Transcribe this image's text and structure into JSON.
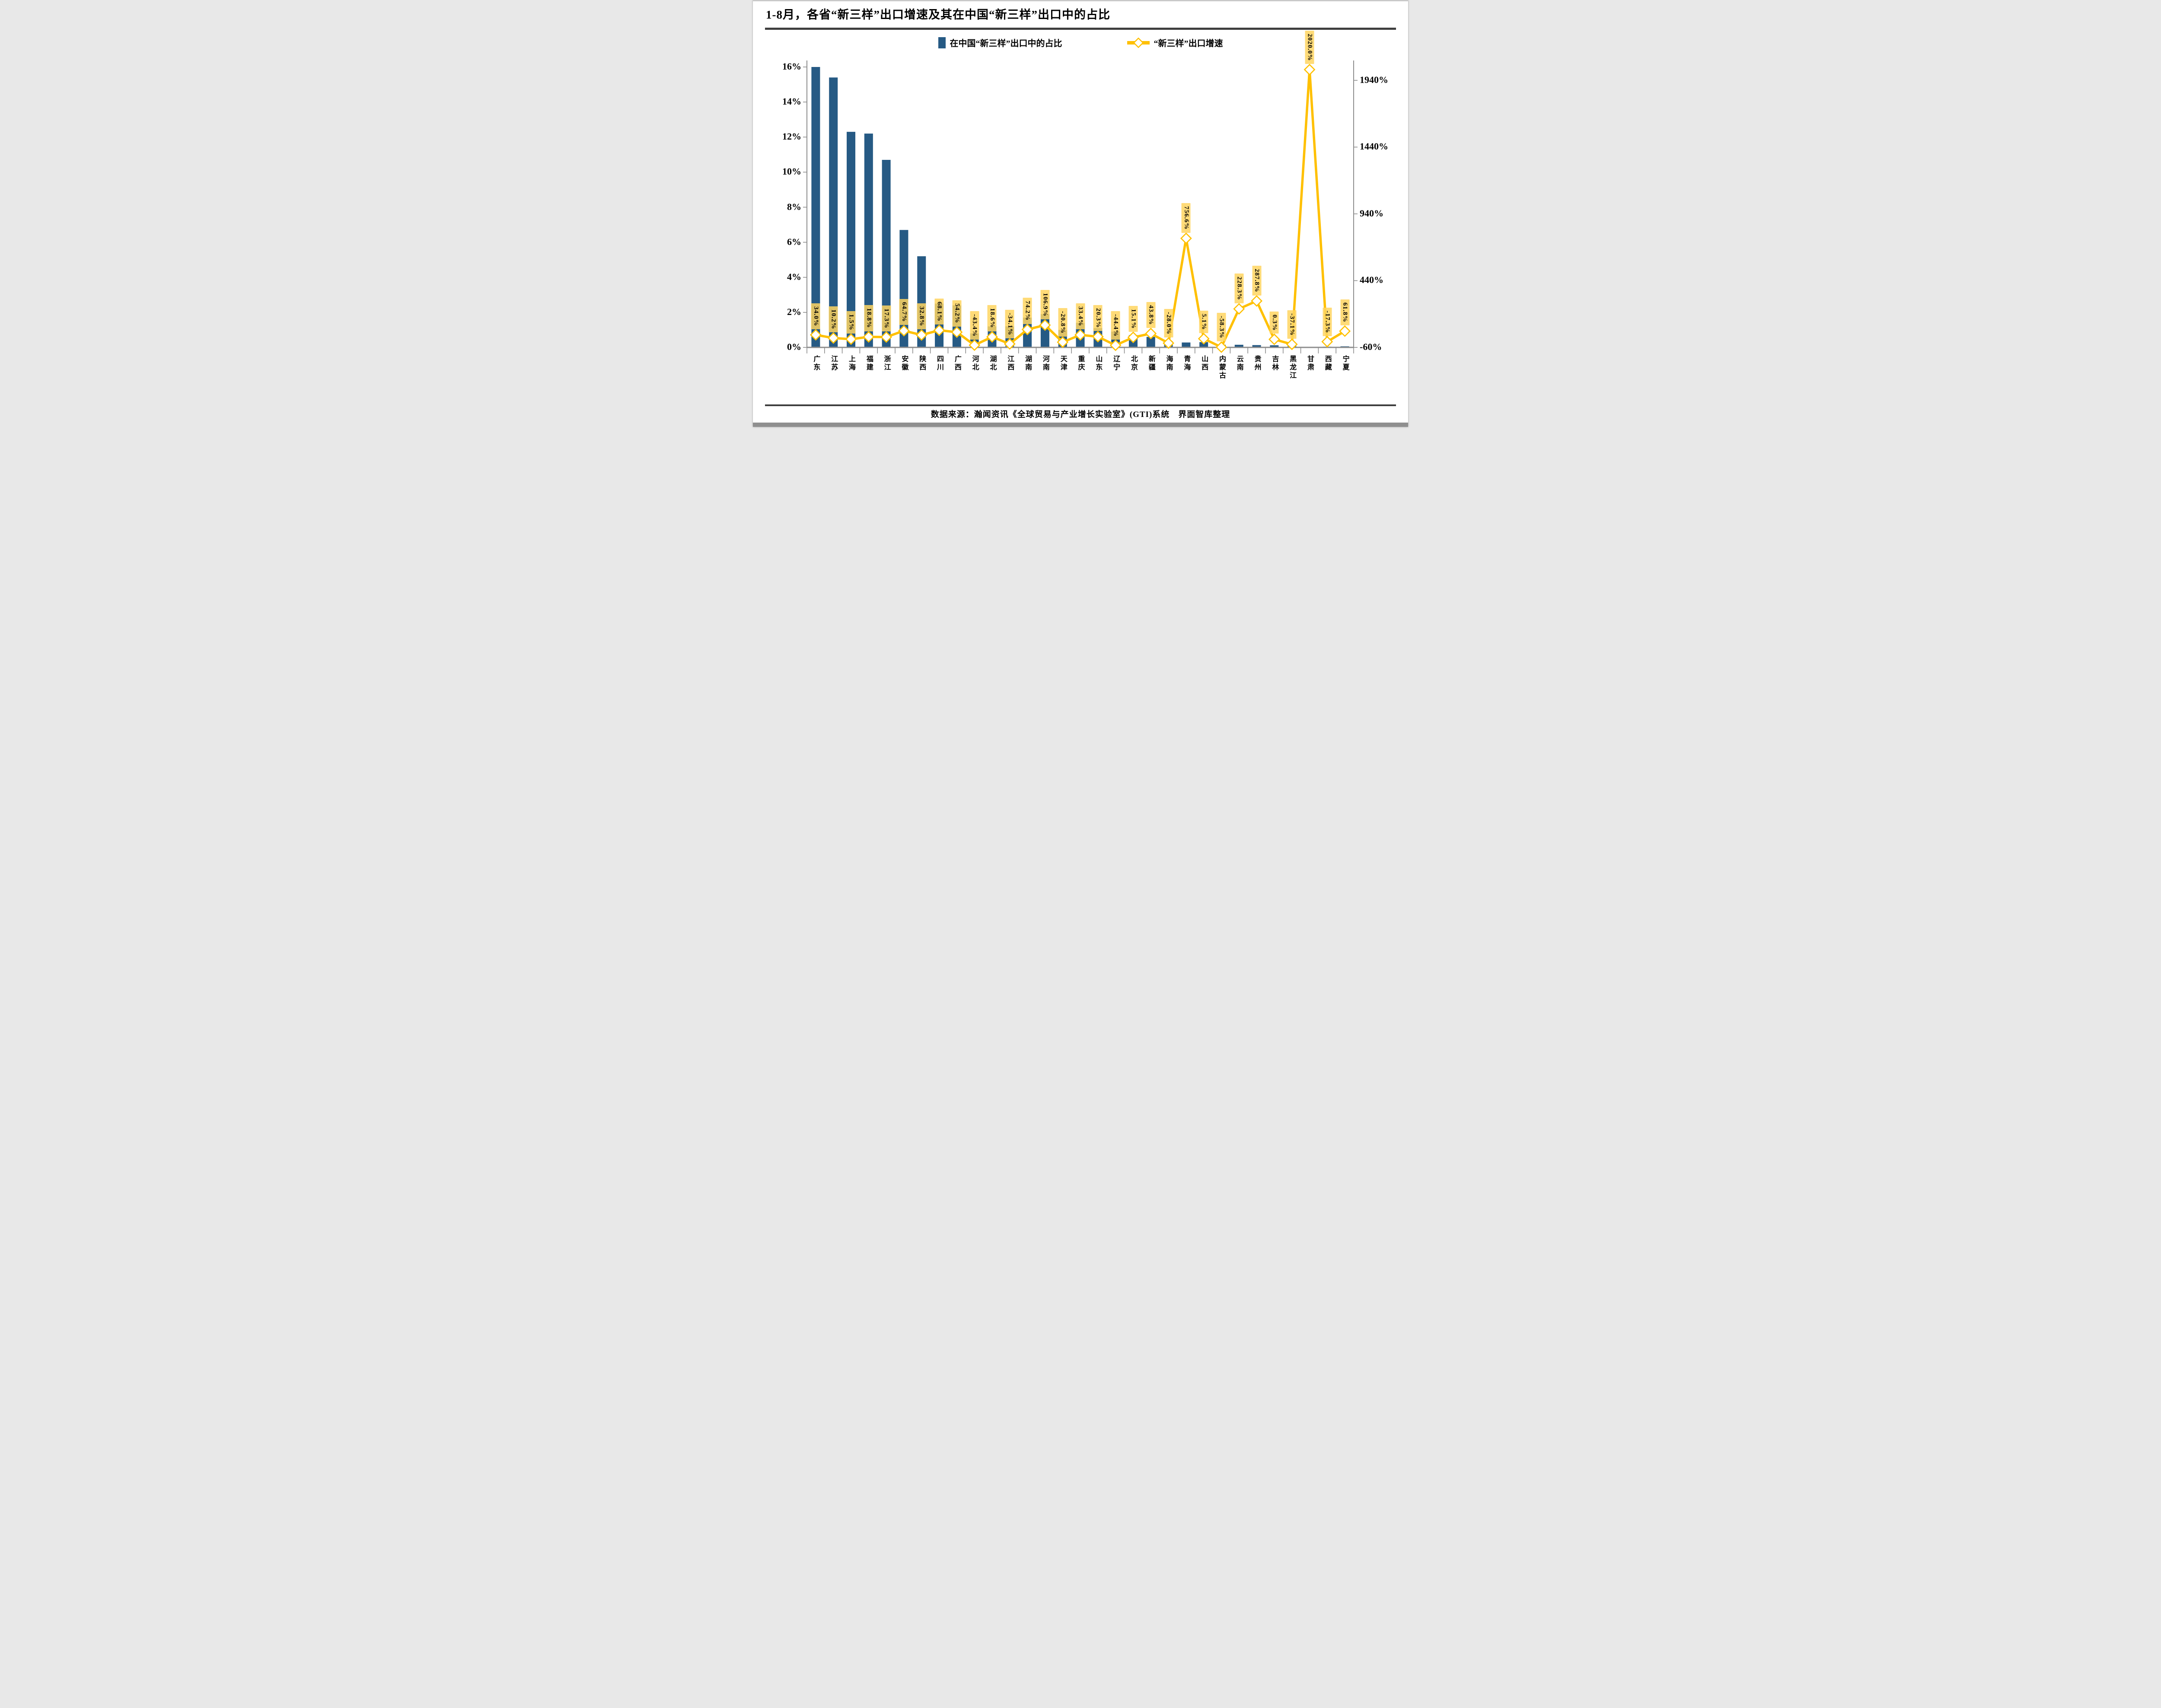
{
  "title": "1-8月，各省“新三样”出口增速及其在中国“新三样”出口中的占比",
  "legend": {
    "share_label": "在中国“新三样”出口中的占比",
    "growth_label": "“新三样”出口增速"
  },
  "source": "数据来源：瀚闻资讯《全球贸易与产业增长实验室》(GTI)系统　界面智库整理",
  "colors": {
    "bar": "#265a84",
    "line": "#ffc000",
    "label_bg": "rgba(255,213,96,0.85)",
    "axis": "#8c8c8c",
    "text": "#000000"
  },
  "chart_data": {
    "type": "combo (bar + line, dual axis)",
    "categories": [
      "广东",
      "江苏",
      "上海",
      "福建",
      "浙江",
      "安徽",
      "陕西",
      "四川",
      "广西",
      "河北",
      "湖北",
      "江西",
      "湖南",
      "河南",
      "天津",
      "重庆",
      "山东",
      "辽宁",
      "北京",
      "新疆",
      "海南",
      "青海",
      "山西",
      "内蒙古",
      "云南",
      "贵州",
      "吉林",
      "黑龙江",
      "甘肃",
      "西藏",
      "宁夏"
    ],
    "series": [
      {
        "name": "在中国“新三样”出口中的占比",
        "type": "bar",
        "axis": "left",
        "values": [
          16.0,
          15.4,
          12.3,
          12.2,
          10.7,
          6.7,
          5.2,
          2.5,
          2.4,
          0.8,
          1.2,
          1.2,
          1.7,
          1.9,
          1.0,
          1.4,
          1.1,
          0.9,
          0.7,
          0.6,
          0.35,
          0.28,
          0.3,
          0.15,
          0.15,
          0.13,
          0.12,
          0.08,
          0.02,
          0.04,
          0.06
        ]
      },
      {
        "name": "“新三样”出口增速",
        "type": "line",
        "axis": "right",
        "marker": "hollow-diamond",
        "show_data_labels": true,
        "values": [
          34.0,
          10.2,
          1.5,
          18.8,
          17.3,
          64.7,
          32.8,
          68.1,
          54.2,
          -43.4,
          18.6,
          -34.1,
          74.2,
          106.9,
          -20.8,
          33.4,
          20.3,
          -44.4,
          15.1,
          43.8,
          -28.0,
          756.6,
          5.1,
          -58.3,
          228.3,
          287.8,
          0.3,
          -37.1,
          2020.0,
          -17.3,
          61.8
        ]
      }
    ],
    "left_axis": {
      "tick_values": [
        16,
        14,
        12,
        10,
        8,
        6,
        4,
        2,
        0
      ],
      "range": [
        0,
        16
      ],
      "format": "percent"
    },
    "right_axis": {
      "tick_values": [
        1940,
        1440,
        940,
        440,
        -60
      ],
      "range": [
        -60,
        2040
      ],
      "format": "percent"
    },
    "grid": false,
    "legend_position": "top"
  }
}
